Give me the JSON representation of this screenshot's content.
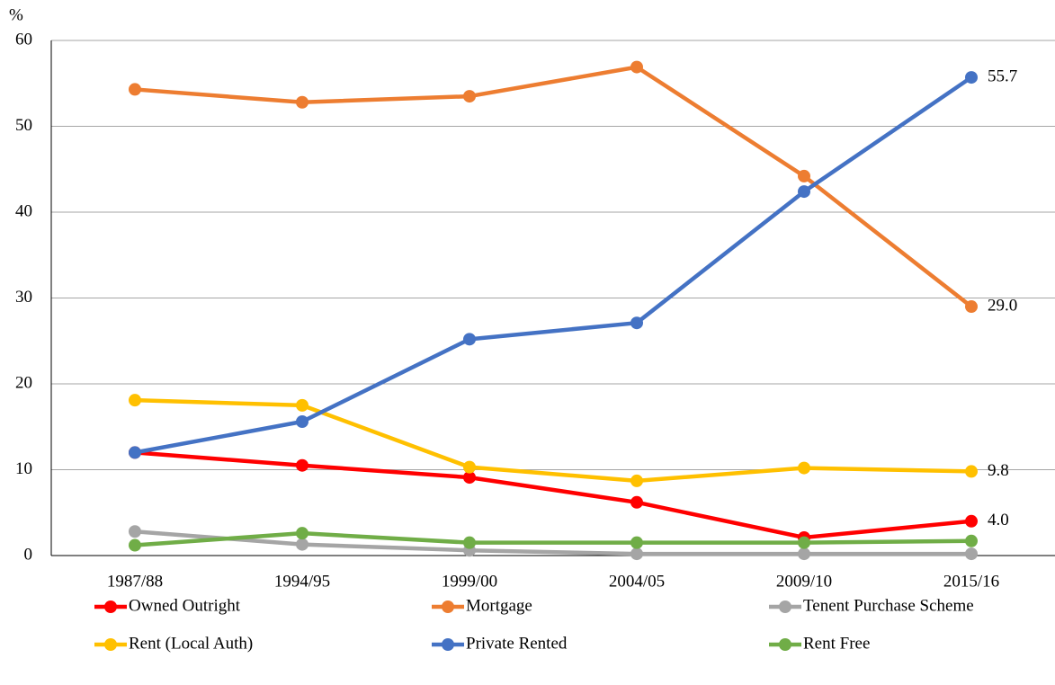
{
  "chart_data": {
    "type": "line",
    "y_label": "%",
    "categories": [
      "1987/88",
      "1994/95",
      "1999/00",
      "2004/05",
      "2009/10",
      "2015/16"
    ],
    "ylim": [
      0,
      60
    ],
    "yticks": [
      0,
      10,
      20,
      30,
      40,
      50,
      60
    ],
    "grid": true,
    "legend": "bottom",
    "series": [
      {
        "name": "Owned Outright",
        "color": "#ff0000",
        "values": [
          12.0,
          10.5,
          9.1,
          6.2,
          2.1,
          4.0
        ],
        "value_labels": [
          null,
          null,
          null,
          null,
          null,
          "4.0"
        ]
      },
      {
        "name": "Mortgage",
        "color": "#ed7d31",
        "values": [
          54.3,
          52.8,
          53.5,
          56.9,
          44.2,
          29.0
        ],
        "value_labels": [
          null,
          null,
          null,
          null,
          null,
          "29.0"
        ]
      },
      {
        "name": "Tenent Purchase Scheme",
        "color": "#a5a5a5",
        "values": [
          2.8,
          1.3,
          0.6,
          0.2,
          0.2,
          0.2
        ]
      },
      {
        "name": "Rent (Local Auth)",
        "color": "#ffc000",
        "values": [
          18.1,
          17.5,
          10.3,
          8.7,
          10.2,
          9.8
        ],
        "value_labels": [
          null,
          null,
          null,
          null,
          null,
          "9.8"
        ]
      },
      {
        "name": "Private Rented",
        "color": "#4472c4",
        "values": [
          12.0,
          15.6,
          25.2,
          27.1,
          42.4,
          55.7
        ],
        "value_labels": [
          null,
          null,
          null,
          null,
          null,
          "55.7"
        ]
      },
      {
        "name": "Rent Free",
        "color": "#70ad47",
        "values": [
          1.2,
          2.6,
          1.5,
          1.5,
          1.5,
          1.7
        ]
      }
    ]
  }
}
